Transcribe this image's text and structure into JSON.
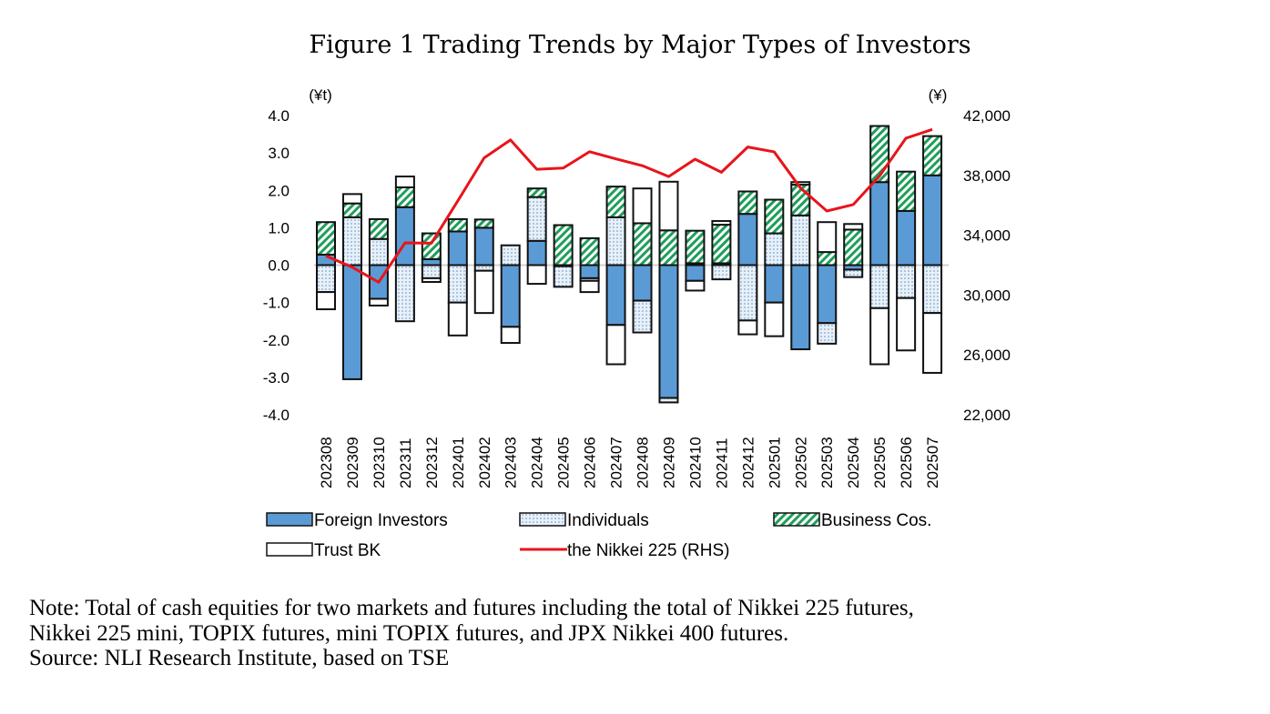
{
  "chart_data": {
    "type": "bar",
    "title": "Figure 1 Trading Trends by Major Types of Investors",
    "y_left_unit": "(¥t)",
    "y_right_unit": "(¥)",
    "ylim": [
      -4,
      4
    ],
    "y2lim": [
      22000,
      42000
    ],
    "y_ticks": [
      "4.0",
      "3.0",
      "2.0",
      "1.0",
      "0.0",
      "-1.0",
      "-2.0",
      "-3.0",
      "-4.0"
    ],
    "y2_ticks": [
      "42,000",
      "38,000",
      "34,000",
      "30,000",
      "26,000",
      "22,000"
    ],
    "stacked": true,
    "grid": false,
    "legend_position": "bottom",
    "categories": [
      "202308",
      "202309",
      "202310",
      "202311",
      "202312",
      "202401",
      "202402",
      "202403",
      "202404",
      "202405",
      "202406",
      "202407",
      "202408",
      "202409",
      "202410",
      "202411",
      "202412",
      "202501",
      "202502",
      "202503",
      "202504",
      "202505",
      "202506",
      "202507"
    ],
    "series": [
      {
        "name": "Foreign Investors",
        "type": "bar",
        "color": "#5b9bd5",
        "values": [
          0.28,
          -3.05,
          -0.9,
          1.55,
          0.16,
          0.9,
          1.0,
          -1.65,
          0.65,
          -0.03,
          -0.35,
          -1.6,
          -0.95,
          -3.55,
          -0.42,
          0.05,
          1.37,
          -1.0,
          -2.25,
          -1.55,
          -0.12,
          2.22,
          1.45,
          2.4
        ]
      },
      {
        "name": "Individuals",
        "type": "bar",
        "color": "#dce9f5",
        "values": [
          -0.72,
          1.28,
          0.7,
          -1.5,
          -0.35,
          -1.0,
          -0.15,
          0.53,
          1.17,
          -0.55,
          -0.07,
          1.28,
          -0.85,
          -0.12,
          0.05,
          -0.38,
          -1.48,
          0.85,
          1.33,
          -0.55,
          -0.2,
          -1.15,
          -0.88,
          -1.28
        ]
      },
      {
        "name": "Business Cos.",
        "type": "bar",
        "color": "#1e9e5a",
        "values": [
          0.87,
          0.37,
          0.53,
          0.53,
          0.69,
          0.33,
          0.22,
          0,
          0.23,
          1.07,
          0.72,
          0.82,
          1.12,
          0.93,
          0.87,
          1.03,
          0.6,
          0.9,
          0.82,
          0.35,
          0.95,
          1.5,
          1.05,
          1.05
        ]
      },
      {
        "name": "Trust BK",
        "type": "bar",
        "color": "#ffffff",
        "values": [
          -0.46,
          0.25,
          -0.18,
          0.29,
          -0.1,
          -0.88,
          -1.13,
          -0.43,
          -0.5,
          0,
          -0.3,
          -1.05,
          0.93,
          1.3,
          -0.26,
          0.1,
          -0.37,
          -0.9,
          0.07,
          0.8,
          0.15,
          -1.5,
          -1.4,
          -1.6
        ]
      },
      {
        "name": "the Nikkei 225 (RHS)",
        "type": "line",
        "axis": "right",
        "color": "#e8141b",
        "values": [
          32619,
          31858,
          30859,
          33487,
          33464,
          36287,
          39166,
          40369,
          38406,
          38488,
          39583,
          39102,
          38648,
          37920,
          39081,
          38208,
          39895,
          39572,
          37156,
          35618,
          36045,
          37965,
          40487,
          41069
        ]
      }
    ]
  },
  "notes": [
    "Note: Total of cash equities for two markets and futures including the total of Nikkei 225 futures,",
    "Nikkei 225 mini, TOPIX futures, mini TOPIX futures, and JPX Nikkei 400 futures.",
    "Source: NLI Research Institute, based on TSE"
  ]
}
